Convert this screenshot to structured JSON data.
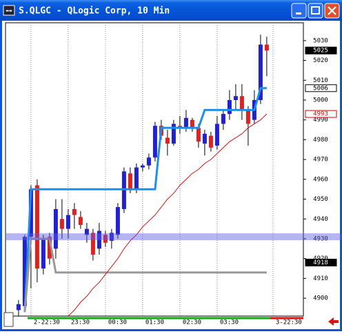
{
  "chart_data": {
    "type": "candlestick",
    "title": "S.QLGC - QLogic Corp, 10 Min",
    "candles": {
      "open": [
        4894,
        4896,
        4931,
        4957,
        4915,
        4931,
        4925,
        4940,
        4935,
        4945,
        4941,
        4932,
        4933,
        4925,
        4932,
        4929,
        4932,
        4945,
        4963,
        4955,
        4966,
        4967,
        4971,
        4987,
        4981,
        4978,
        4987,
        4986,
        4990,
        4986,
        4978,
        4982,
        4977,
        4988,
        4993,
        5000,
        5002,
        4995,
        4990,
        5000,
        5028
      ],
      "high": [
        4899,
        4932,
        4957,
        4960,
        4932,
        4933,
        4950,
        4950,
        4945,
        4948,
        4944,
        4938,
        4935,
        4938,
        4934,
        4935,
        4948,
        4966,
        4966,
        4968,
        4968,
        4973,
        4989,
        4990,
        4985,
        4990,
        4992,
        4995,
        4991,
        4988,
        4985,
        4984,
        4992,
        4995,
        5005,
        5008,
        5008,
        4997,
        5005,
        5033,
        5032
      ],
      "low": [
        4891,
        4893,
        4905,
        4908,
        4912,
        4917,
        4920,
        4930,
        4930,
        4935,
        4935,
        4928,
        4919,
        4922,
        4926,
        4925,
        4930,
        4943,
        4953,
        4953,
        4964,
        4965,
        4969,
        4980,
        4972,
        4977,
        4983,
        4984,
        4984,
        4976,
        4972,
        4974,
        4975,
        4985,
        4990,
        4995,
        4990,
        4977,
        4988,
        4998,
        5012
      ],
      "close": [
        4897,
        4931,
        4955,
        4915,
        4930,
        4920,
        4945,
        4935,
        4942,
        4942,
        4937,
        4935,
        4922,
        4934,
        4928,
        4933,
        4946,
        4964,
        4955,
        4966,
        4967,
        4971,
        4987,
        4982,
        4978,
        4988,
        4986,
        4991,
        4986,
        4979,
        4983,
        4976,
        4988,
        4993,
        5000,
        5002,
        4995,
        4988,
        5000,
        5028,
        5025
      ],
      "up_color": "#2222cc",
      "down_color": "#dd2222"
    },
    "lines": [
      {
        "color": "#1e8fe8",
        "width": 3,
        "values": [
          null,
          4893,
          4955,
          4955,
          4955,
          4955,
          4955,
          4955,
          4955,
          4955,
          4955,
          4955,
          4955,
          4955,
          4955,
          4955,
          4955,
          4955,
          4955,
          4955,
          4955,
          4955,
          4955,
          4986,
          4986,
          4986,
          4986,
          4986,
          4986,
          4986,
          4995,
          4995,
          4995,
          4995,
          4995,
          4995,
          4995,
          4995,
          4995,
          5006,
          5006
        ]
      },
      {
        "color": "#999999",
        "width": 3,
        "values": [
          null,
          4893,
          4930,
          4930,
          4930,
          4930,
          4913,
          4913,
          4913,
          4913,
          4913,
          4913,
          4913,
          4913,
          4913,
          4913,
          4913,
          4913,
          4913,
          4913,
          4913,
          4913,
          4913,
          4913,
          4913,
          4913,
          4913,
          4913,
          4913,
          4913,
          4913,
          4913,
          4913,
          4913,
          4913,
          4913,
          4913,
          4913,
          4913,
          4913,
          4913
        ]
      },
      {
        "color": "#dd1111",
        "width": 1,
        "values": [
          null,
          null,
          null,
          null,
          null,
          null,
          null,
          null,
          4891,
          4894,
          4898,
          4901,
          4905,
          4908,
          4912,
          4916,
          4920,
          4925,
          4929,
          4932,
          4936,
          4939,
          4942,
          4946,
          4950,
          4953,
          4957,
          4960,
          4963,
          4965,
          4968,
          4970,
          4973,
          4976,
          4979,
          4981,
          4983,
          4986,
          4988,
          4990,
          4993
        ]
      }
    ],
    "band": {
      "value": 4931,
      "color": "rgba(90,90,235,0.45)"
    },
    "xlim": [
      -2.1,
      45.9
    ],
    "xticks": [
      {
        "value": 2,
        "label": "2-22:30"
      },
      {
        "value": 8,
        "label": "23:30"
      },
      {
        "value": 14,
        "label": "00:30"
      },
      {
        "value": 20,
        "label": "01:30"
      },
      {
        "value": 26,
        "label": "02:30"
      },
      {
        "value": 32,
        "label": "03:30"
      },
      {
        "value": 41,
        "label": "3-22:30"
      }
    ],
    "ylim": [
      4891,
      5039
    ],
    "yticks": [
      4900,
      4910,
      4920,
      4930,
      4940,
      4950,
      4960,
      4970,
      4980,
      4990,
      5000,
      5010,
      5020,
      5030
    ],
    "price_markers": [
      {
        "value": 5025,
        "bg": "#000000",
        "fg": "#ffffff",
        "border": "#000000"
      },
      {
        "value": 5006,
        "bg": "#ffffff",
        "fg": "#000000",
        "border": "#000000"
      },
      {
        "value": 4993,
        "bg": "#ffffff",
        "fg": "#dd0000",
        "border": "#dd0000"
      },
      {
        "value": 4918,
        "bg": "#000000",
        "fg": "#ffffff",
        "border": "#000000"
      }
    ],
    "grid": true
  }
}
